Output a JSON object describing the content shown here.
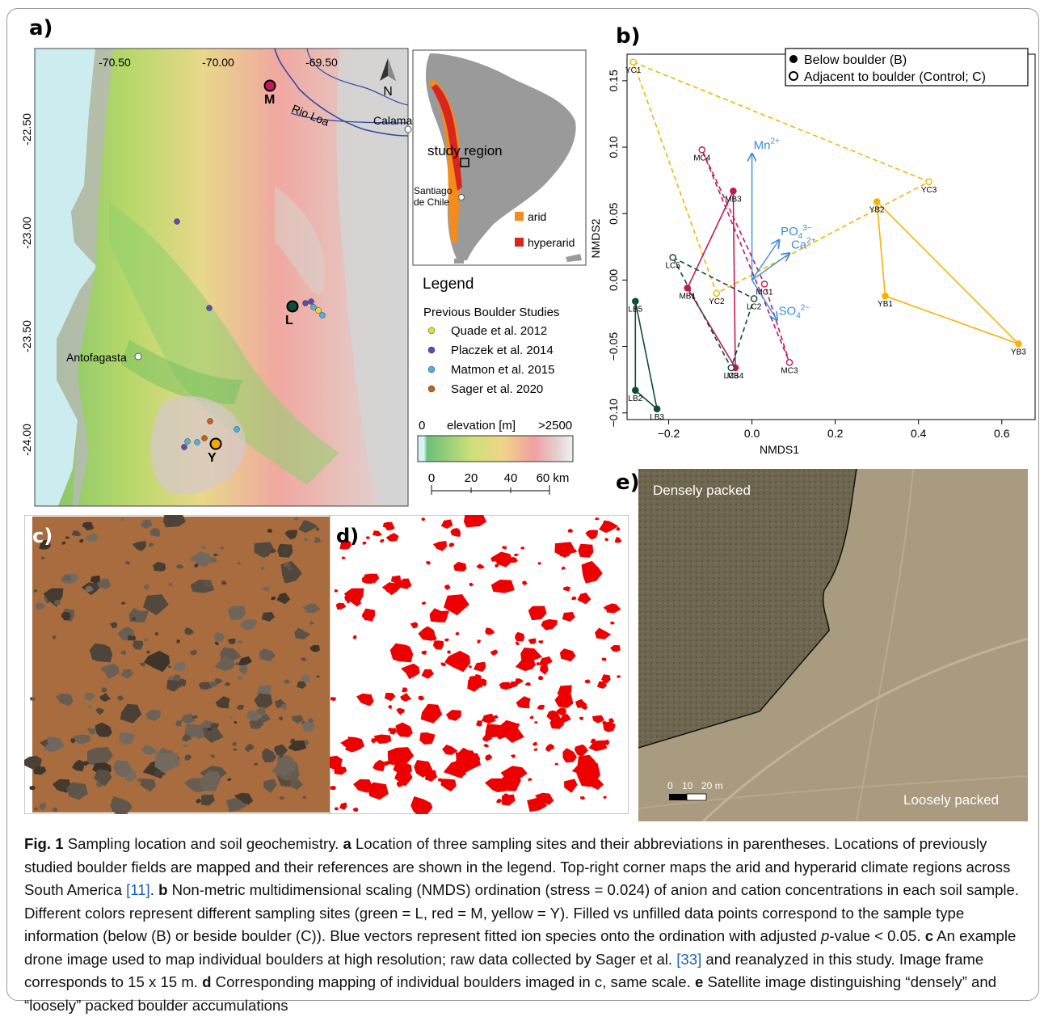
{
  "panels": {
    "a": "a)",
    "b": "b)",
    "c": "c)",
    "d": "d)",
    "e": "e)"
  },
  "map": {
    "lon_ticks": [
      "-70.50",
      "-70.00",
      "-69.50"
    ],
    "lat_ticks": [
      "-22.50",
      "-23.00",
      "-23.50",
      "-24.00"
    ],
    "north": "N",
    "river": "Rio Loa",
    "cities": {
      "calama": "Calama",
      "antofagasta": "Antofagasta"
    },
    "sites": [
      {
        "code": "M",
        "color": "#c2185b"
      },
      {
        "code": "L",
        "color": "#0d4d3a"
      },
      {
        "code": "Y",
        "color": "#f5a800"
      }
    ],
    "legend_title": "Legend",
    "legend_subtitle": "Previous Boulder Studies",
    "legend_items": [
      {
        "label": "Quade et al. 2012",
        "color": "#e6d83a"
      },
      {
        "label": "Placzek et al. 2014",
        "color": "#5b4bb5"
      },
      {
        "label": "Matmon et al. 2015",
        "color": "#4fb0e0"
      },
      {
        "label": "Sager et al. 2020",
        "color": "#c8601a"
      }
    ],
    "elevation_min": "0",
    "elevation_label": "elevation [m]",
    "elevation_max": ">2500",
    "scale_ticks": [
      "0",
      "20",
      "40",
      "60 km"
    ]
  },
  "inset": {
    "study_region": "study region",
    "santiago": "Santiago\nde Chile",
    "arid_label": "arid",
    "hyperarid_label": "hyperarid",
    "arid_color": "#f28c1c",
    "hyperarid_color": "#d7261e"
  },
  "chart_data": {
    "type": "scatter",
    "xlabel": "NMDS1",
    "ylabel": "NMDS2",
    "xlim": [
      -0.3,
      0.68
    ],
    "ylim": [
      -0.105,
      0.17
    ],
    "x_ticks": [
      "−0.2",
      "0.0",
      "0.2",
      "0.4",
      "0.6"
    ],
    "x_tick_values": [
      -0.2,
      0.0,
      0.2,
      0.4,
      0.6
    ],
    "y_ticks": [
      "−0.10",
      "−0.05",
      "0.00",
      "0.05",
      "0.10",
      "0.15"
    ],
    "y_tick_values": [
      -0.1,
      -0.05,
      0.0,
      0.05,
      0.1,
      0.15
    ],
    "legend": [
      {
        "label": "Below boulder (B)",
        "filled": true
      },
      {
        "label": "Adjacent to boulder (Control; C)",
        "filled": false
      }
    ],
    "legend_position": "top-right",
    "site_colors": {
      "L": "#0d4d3a",
      "M": "#c2185b",
      "Y": "#f5b400"
    },
    "points": [
      {
        "id": "YC1",
        "site": "Y",
        "x": -0.285,
        "y": 0.164,
        "filled": false
      },
      {
        "id": "YC2",
        "site": "Y",
        "x": -0.085,
        "y": -0.01,
        "filled": false
      },
      {
        "id": "YC3",
        "site": "Y",
        "x": 0.425,
        "y": 0.074,
        "filled": false
      },
      {
        "id": "YB1",
        "site": "Y",
        "x": 0.32,
        "y": -0.012,
        "filled": true
      },
      {
        "id": "YB2",
        "site": "Y",
        "x": 0.3,
        "y": 0.059,
        "filled": true
      },
      {
        "id": "YB3",
        "site": "Y",
        "x": 0.64,
        "y": -0.048,
        "filled": true
      },
      {
        "id": "MC1",
        "site": "M",
        "x": 0.03,
        "y": -0.003,
        "filled": false
      },
      {
        "id": "MC3",
        "site": "M",
        "x": 0.09,
        "y": -0.062,
        "filled": false
      },
      {
        "id": "MC4",
        "site": "M",
        "x": -0.12,
        "y": 0.098,
        "filled": false
      },
      {
        "id": "MB1",
        "site": "M",
        "x": -0.155,
        "y": -0.006,
        "filled": true
      },
      {
        "id": "MB3",
        "site": "M",
        "x": -0.045,
        "y": 0.067,
        "filled": true
      },
      {
        "id": "MB4",
        "site": "M",
        "x": -0.04,
        "y": -0.066,
        "filled": true
      },
      {
        "id": "LC2",
        "site": "L",
        "x": 0.005,
        "y": -0.014,
        "filled": false
      },
      {
        "id": "LC3",
        "site": "L",
        "x": -0.05,
        "y": -0.066,
        "filled": false
      },
      {
        "id": "LC5",
        "site": "L",
        "x": -0.19,
        "y": 0.017,
        "filled": false
      },
      {
        "id": "LB2",
        "site": "L",
        "x": -0.28,
        "y": -0.083,
        "filled": true
      },
      {
        "id": "LB3",
        "site": "L",
        "x": -0.228,
        "y": -0.097,
        "filled": true
      },
      {
        "id": "LB5",
        "site": "L",
        "x": -0.28,
        "y": -0.016,
        "filled": true
      }
    ],
    "hulls": [
      {
        "site": "Y",
        "filled": false,
        "ids": [
          "YC1",
          "YC3",
          "YC2"
        ]
      },
      {
        "site": "Y",
        "filled": true,
        "ids": [
          "YB2",
          "YB3",
          "YB1"
        ]
      },
      {
        "site": "M",
        "filled": true,
        "ids": [
          "MB3",
          "MB4",
          "MB1"
        ]
      },
      {
        "site": "M",
        "filled": false,
        "ids": [
          "MC4",
          "MC1",
          "MC3"
        ]
      },
      {
        "site": "L",
        "filled": true,
        "ids": [
          "LB5",
          "LB3",
          "LB2"
        ]
      },
      {
        "site": "L",
        "filled": false,
        "ids": [
          "LC5",
          "LC2",
          "LC3"
        ]
      }
    ],
    "vector_origin": [
      0.0,
      0.0
    ],
    "vectors": [
      {
        "label": "Mn",
        "sup": "2+",
        "x": 0.0,
        "y": 0.095
      },
      {
        "label": "PO",
        "sub": "4",
        "sup": "3−",
        "x": 0.065,
        "y": 0.03
      },
      {
        "label": "Ca",
        "sup": "2+",
        "x": 0.09,
        "y": 0.02
      },
      {
        "label": "SO",
        "sub": "4",
        "sup": "2−",
        "x": 0.06,
        "y": -0.03
      }
    ],
    "vector_color": "#3a8ee0"
  },
  "satellite": {
    "dense": "Densely packed",
    "loose": "Loosely packed",
    "scale": [
      "0",
      "10",
      "20 m"
    ]
  },
  "caption": {
    "fig": "Fig. 1",
    "title": " Sampling location and soil geochemistry. ",
    "a": "a",
    "a_text": " Location of three sampling sites and their abbreviations in parentheses. Locations of previously studied boulder fields are mapped and their references are shown in the legend. Top-right corner maps the arid and hyperarid climate regions across South America ",
    "ref11": "[11]",
    "dot1": ". ",
    "b": "b",
    "b_text": " Non-metric multidimensional scaling (NMDS) ordination (stress = 0.024) of anion and cation concentrations in each soil sample. Different colors represent different sampling sites (green = L, red = M, yellow = Y). Filled vs unfilled data points correspond to the sample type information (below (B) or beside boulder (C)). Blue vectors represent fitted ion species onto the ordination with adjusted ",
    "pitalic": "p",
    "b_text2": "-value < 0.05. ",
    "c": "c",
    "c_text": " An example drone image used to map individual boulders at high resolution; raw data collected by Sager et al. ",
    "ref33": "[33]",
    "c_text2": " and reanalyzed in this study. Image frame corresponds to 15 x 15 m. ",
    "d": "d",
    "d_text": " Corresponding mapping of individual boulders imaged in c, same scale. ",
    "e": "e",
    "e_text": " Satellite image distinguishing “densely” and “loosely” packed boulder accumulations"
  }
}
